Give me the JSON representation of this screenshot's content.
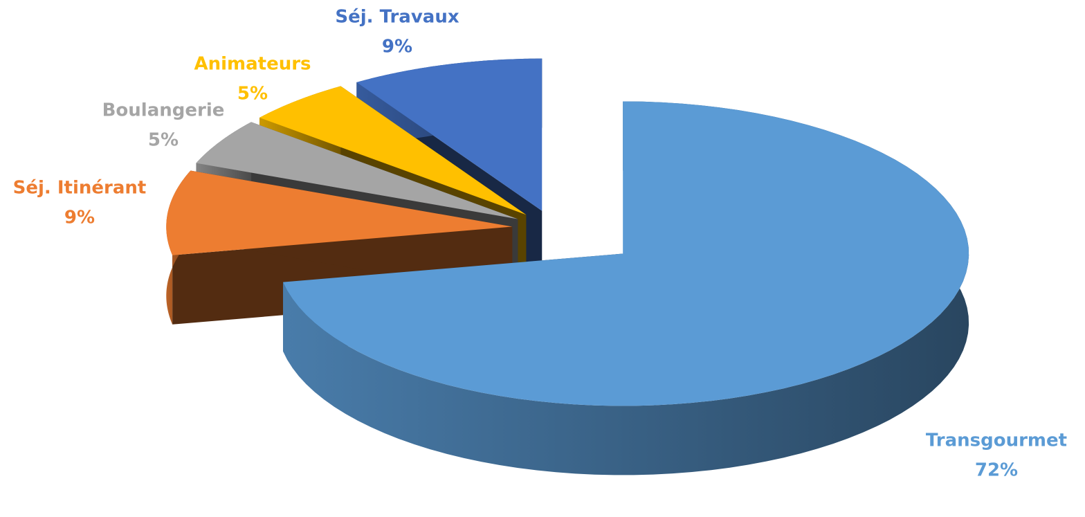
{
  "chart_data": {
    "type": "pie3d",
    "categories": [
      "Transgourmet",
      "Séj. Itinérant",
      "Boulangerie",
      "Animateurs",
      "Séj. Travaux"
    ],
    "values": [
      72,
      9,
      5,
      5,
      9
    ],
    "value_labels": [
      "72%",
      "9%",
      "5%",
      "5%",
      "9%"
    ],
    "colors": [
      "#5b9bd5",
      "#ed7d31",
      "#a5a5a5",
      "#ffc000",
      "#4472c4"
    ]
  }
}
